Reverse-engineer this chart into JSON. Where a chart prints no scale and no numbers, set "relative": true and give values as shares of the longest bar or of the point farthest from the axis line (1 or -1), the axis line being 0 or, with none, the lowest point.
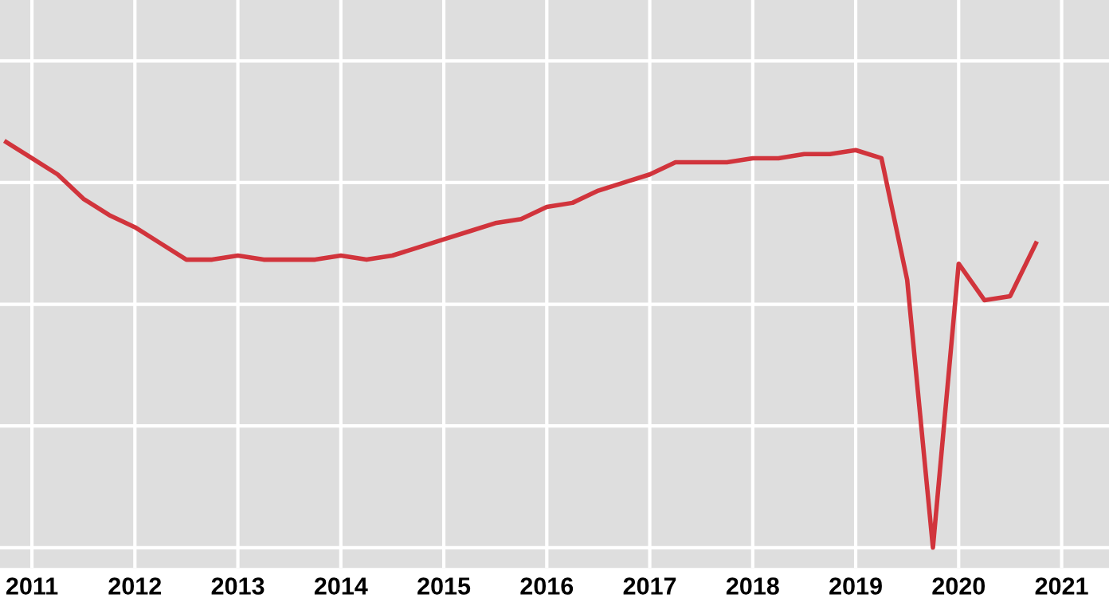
{
  "chart_data": {
    "type": "line",
    "relative": true,
    "grid": true,
    "line_style": "solid",
    "marker": "none",
    "x": [
      2010.75,
      2011.0,
      2011.25,
      2011.5,
      2011.75,
      2012.0,
      2012.25,
      2012.5,
      2012.75,
      2013.0,
      2013.25,
      2013.5,
      2013.75,
      2014.0,
      2014.25,
      2014.5,
      2014.75,
      2015.0,
      2015.25,
      2015.5,
      2015.75,
      2016.0,
      2016.25,
      2016.5,
      2016.75,
      2017.0,
      2017.25,
      2017.5,
      2017.75,
      2018.0,
      2018.25,
      2018.5,
      2018.75,
      2019.0,
      2019.25,
      2019.5,
      2019.75,
      2020.0,
      2020.25,
      2020.5,
      2020.75
    ],
    "series": [
      {
        "color": "#d1343c",
        "values": [
          1.0,
          0.96,
          0.92,
          0.86,
          0.82,
          0.79,
          0.75,
          0.71,
          0.71,
          0.72,
          0.71,
          0.71,
          0.71,
          0.72,
          0.71,
          0.72,
          0.74,
          0.76,
          0.78,
          0.8,
          0.81,
          0.84,
          0.85,
          0.88,
          0.9,
          0.92,
          0.95,
          0.95,
          0.95,
          0.96,
          0.96,
          0.97,
          0.97,
          0.98,
          0.96,
          0.66,
          0.0,
          0.7,
          0.61,
          0.62,
          0.75
        ]
      }
    ],
    "xlim": [
      2010.69,
      2021.46
    ],
    "xticks": [
      2011,
      2012,
      2013,
      2014,
      2015,
      2016,
      2017,
      2018,
      2019,
      2020,
      2021
    ]
  }
}
